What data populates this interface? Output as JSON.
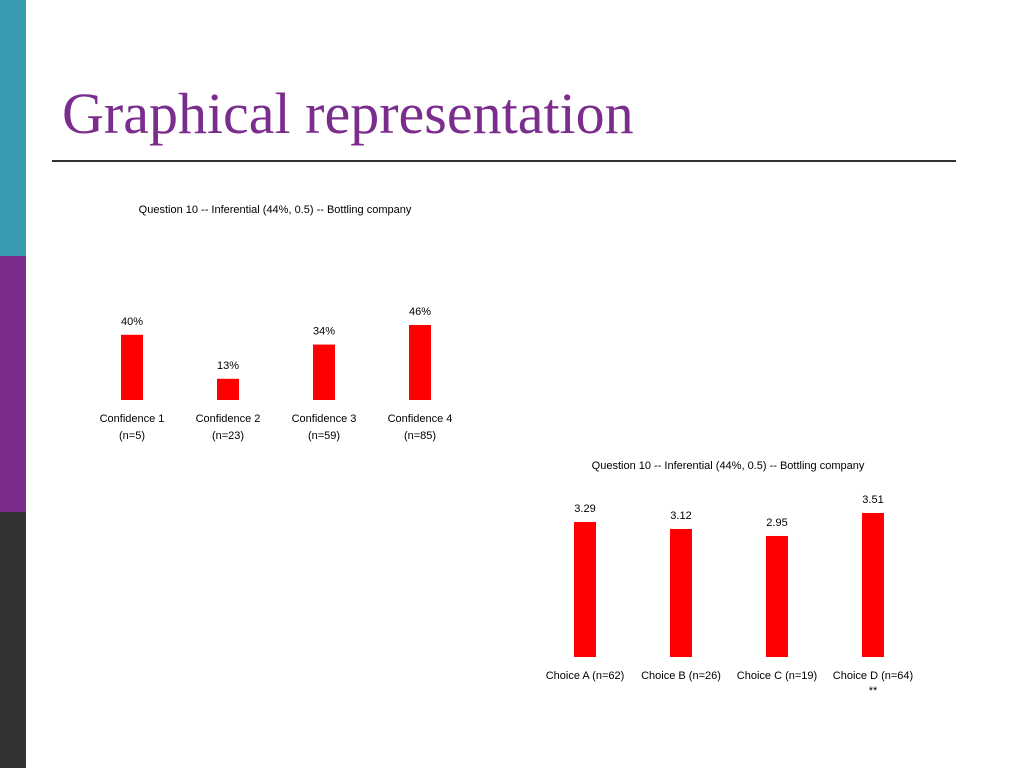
{
  "slide": {
    "title": "Graphical representation",
    "title_color": "#7b2d8e",
    "rule_color": "#333333",
    "side_band_colors": [
      "#3a9bb0",
      "#7b2d8e",
      "#333333"
    ]
  },
  "chart_data": [
    {
      "type": "bar",
      "title": "Question 10 --  Inferential (44%, 0.5) --  Bottling company",
      "categories": [
        [
          "Confidence 1",
          "(n=5)"
        ],
        [
          "Confidence 2",
          "(n=23)"
        ],
        [
          "Confidence 3",
          "(n=59)"
        ],
        [
          "Confidence 4",
          "(n=85)"
        ]
      ],
      "values": [
        40,
        13,
        34,
        46
      ],
      "value_labels": [
        "40%",
        "13%",
        "34%",
        "46%"
      ],
      "ylim": [
        0,
        46
      ],
      "bar_color": "#ff0000",
      "grid": false,
      "legend": "none",
      "xlabel": "",
      "ylabel": ""
    },
    {
      "type": "bar",
      "title": "Question 10 --  Inferential (44%, 0.5) --  Bottling company",
      "categories": [
        [
          "Choice A  (n=62)"
        ],
        [
          "Choice B (n=26)"
        ],
        [
          "Choice C (n=19)"
        ],
        [
          "Choice D (n=64)",
          "**"
        ]
      ],
      "values": [
        3.29,
        3.12,
        2.95,
        3.51
      ],
      "value_labels": [
        "3.29",
        "3.12",
        "2.95",
        "3.51"
      ],
      "ylim": [
        0,
        3.51
      ],
      "bar_color": "#ff0000",
      "grid": false,
      "legend": "none",
      "xlabel": "",
      "ylabel": ""
    }
  ]
}
